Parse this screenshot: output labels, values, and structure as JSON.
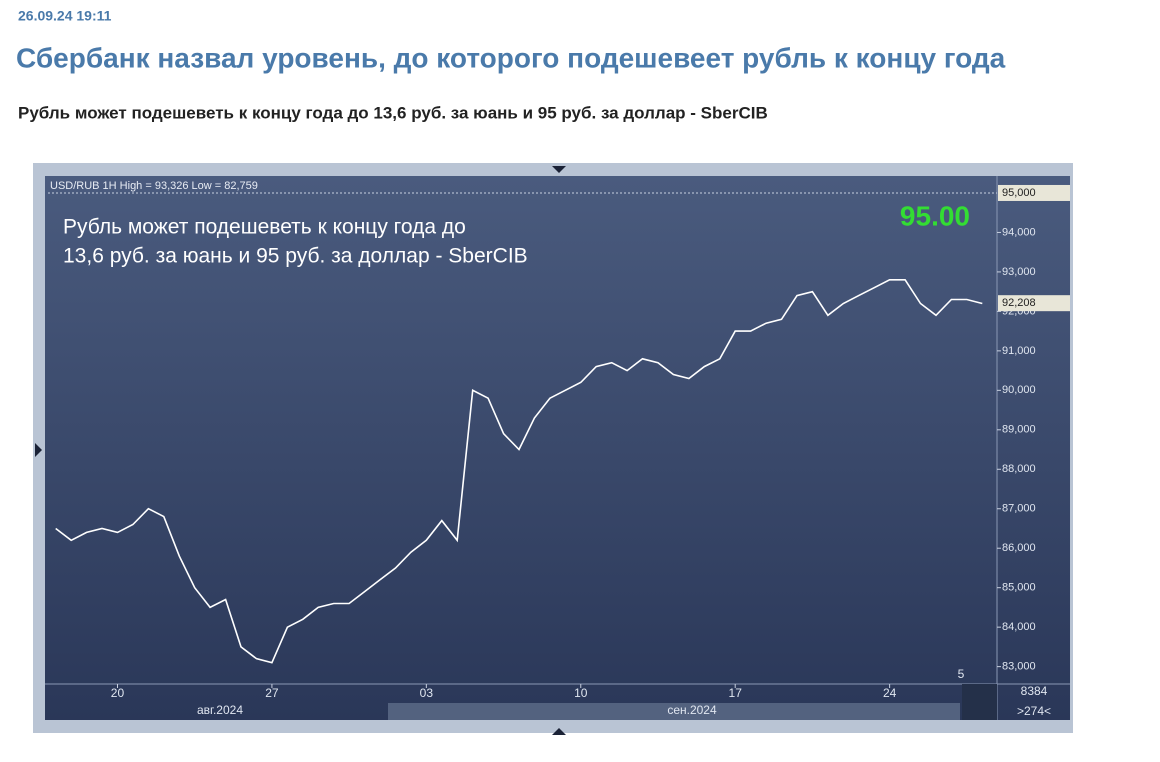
{
  "header": {
    "date": "26.09.24 19:11",
    "title": "Сбербанк назвал уровень, до которого подешевеет рубль к концу года",
    "subtitle": "Рубль может подешеветь к концу года до 13,6 руб. за юань и 95 руб. за доллар - SberCIB"
  },
  "chart_data": {
    "type": "line",
    "info": "USD/RUB 1H High = 93,326 Low = 82,759",
    "annotation": [
      "Рубль может подешеветь к концу года до",
      "13,6 руб. за юань и 95 руб. за доллар - SberCIB"
    ],
    "price_label": "95.00",
    "categories": [
      null,
      null,
      null,
      null,
      "20",
      null,
      null,
      null,
      null,
      null,
      null,
      null,
      null,
      null,
      "27",
      null,
      null,
      null,
      null,
      null,
      null,
      null,
      null,
      null,
      "03",
      null,
      null,
      null,
      null,
      null,
      null,
      null,
      null,
      null,
      "10",
      null,
      null,
      null,
      null,
      null,
      null,
      null,
      null,
      null,
      "17",
      null,
      null,
      null,
      null,
      null,
      null,
      null,
      null,
      null,
      "24",
      null,
      null,
      null,
      null,
      null,
      null
    ],
    "series": [
      {
        "color": "#ffffff",
        "values": [
          86.5,
          86.2,
          86.4,
          86.5,
          86.4,
          86.6,
          87.0,
          86.8,
          85.8,
          85.0,
          84.5,
          84.7,
          83.5,
          83.2,
          83.1,
          84.0,
          84.2,
          84.5,
          84.6,
          84.6,
          84.9,
          85.2,
          85.5,
          85.9,
          86.2,
          86.7,
          86.2,
          90.0,
          89.8,
          88.9,
          88.5,
          89.3,
          89.8,
          90.0,
          90.2,
          90.6,
          90.7,
          90.5,
          90.8,
          90.7,
          90.4,
          90.3,
          90.6,
          90.8,
          91.5,
          91.5,
          91.7,
          91.8,
          92.4,
          92.5,
          91.9,
          92.2,
          92.4,
          92.6,
          92.8,
          92.8,
          92.2,
          91.9,
          92.3,
          92.3,
          92.2
        ]
      }
    ],
    "ylim": [
      82.56,
      95.43
    ],
    "yticks": [
      {
        "value": 83,
        "label": "83,000"
      },
      {
        "value": 84,
        "label": "84,000"
      },
      {
        "value": 85,
        "label": "85,000"
      },
      {
        "value": 86,
        "label": "86,000"
      },
      {
        "value": 87,
        "label": "87,000"
      },
      {
        "value": 88,
        "label": "88,000"
      },
      {
        "value": 89,
        "label": "89,000"
      },
      {
        "value": 90,
        "label": "90,000"
      },
      {
        "value": 91,
        "label": "91,000"
      },
      {
        "value": 92,
        "label": "92,000"
      },
      {
        "value": 93,
        "label": "93,000"
      },
      {
        "value": 94,
        "label": "94,000"
      }
    ],
    "markers": [
      {
        "value": 95,
        "label": "95,000"
      },
      {
        "value": 92.208,
        "label": "92,208"
      }
    ],
    "month_labels": [
      "авг.2024",
      "сен.2024"
    ],
    "corner_texts": [
      "5",
      "8384",
      ">274<"
    ]
  }
}
